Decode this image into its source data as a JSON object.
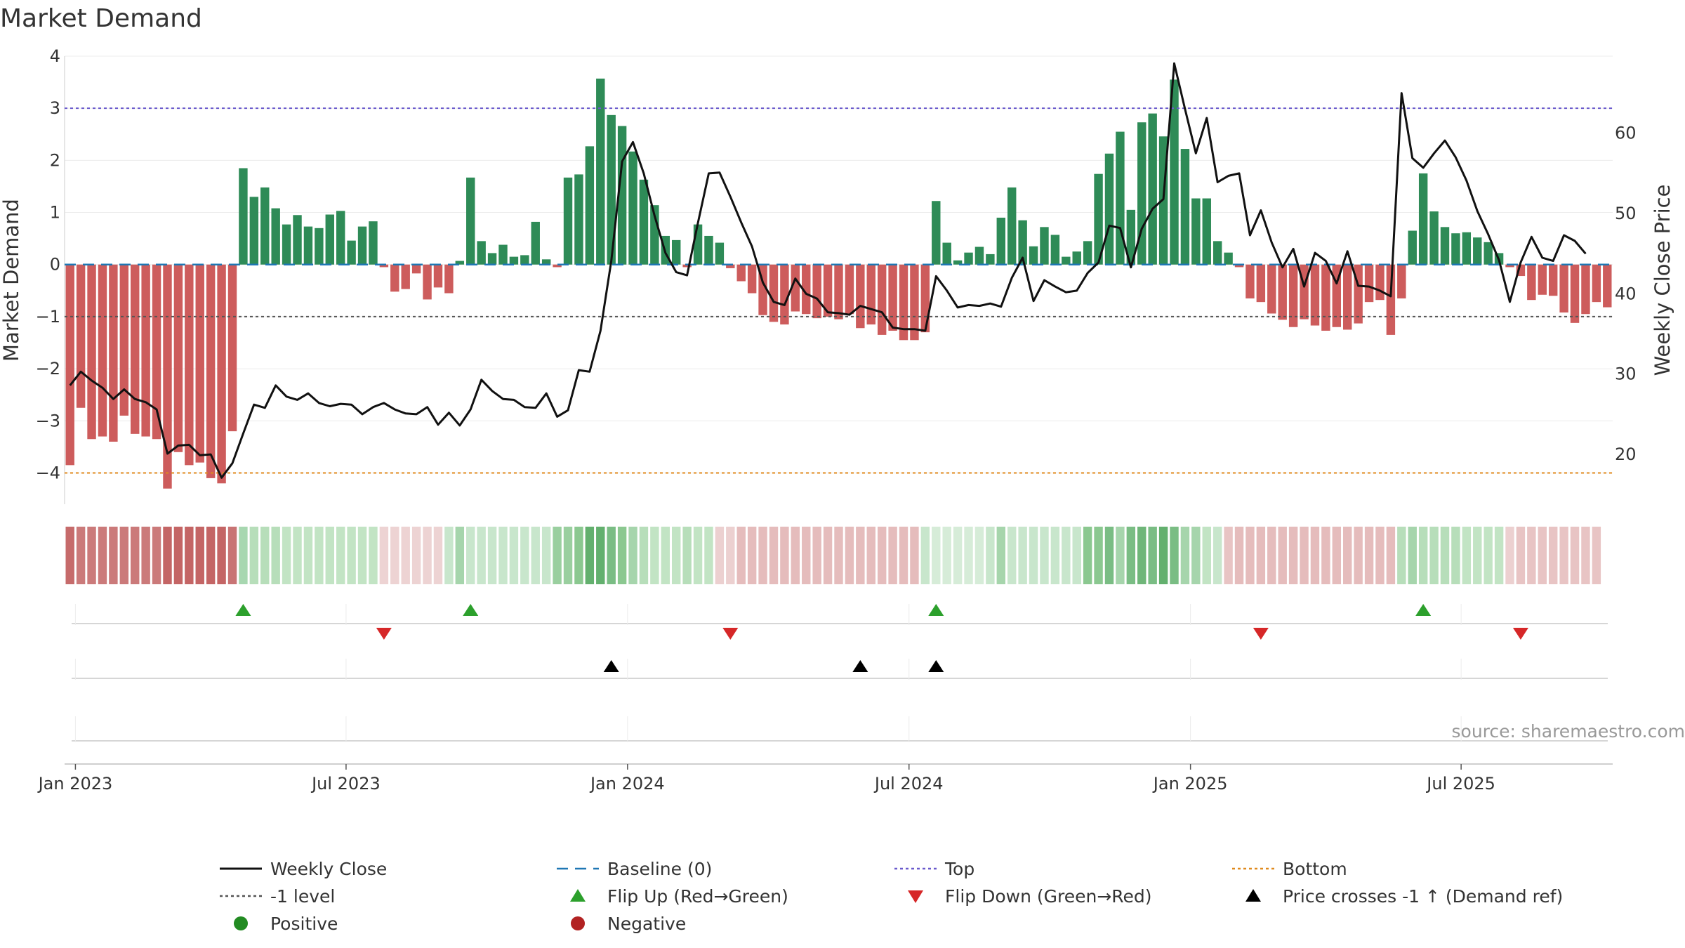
{
  "chart_data": {
    "type": "bar",
    "title": "Market Demand",
    "ylabel": "Market Demand",
    "y2label": "Weekly Close Price",
    "ylim": [
      -4.6,
      4.0
    ],
    "y2lim": [
      13.7,
      69.5
    ],
    "yticks": [
      -4,
      -3,
      -2,
      -1,
      0,
      1,
      2,
      3,
      4
    ],
    "y2ticks": [
      20,
      30,
      40,
      50,
      60
    ],
    "reference_lines": {
      "top": 3,
      "bottom": -4,
      "level": -1,
      "baseline": 0
    },
    "x_start": "2023-01-02",
    "x_ticks": [
      {
        "label": "Jan 2023",
        "week": 1
      },
      {
        "label": "Jul 2023",
        "week": 26
      },
      {
        "label": "Jan 2024",
        "week": 52
      },
      {
        "label": "Jul 2024",
        "week": 78
      },
      {
        "label": "Jan 2025",
        "week": 104
      },
      {
        "label": "Jul 2025",
        "week": 129
      }
    ],
    "series": [
      {
        "name": "Market Demand",
        "values": [
          -3.85,
          -2.75,
          -3.35,
          -3.3,
          -3.4,
          -2.9,
          -3.25,
          -3.3,
          -3.35,
          -4.3,
          -3.6,
          -3.85,
          -3.8,
          -4.1,
          -4.2,
          -3.2,
          1.85,
          1.3,
          1.48,
          1.08,
          0.77,
          0.95,
          0.73,
          0.7,
          0.96,
          1.03,
          0.46,
          0.73,
          0.83,
          -0.05,
          -0.52,
          -0.47,
          -0.17,
          -0.67,
          -0.44,
          -0.55,
          0.07,
          1.67,
          0.45,
          0.22,
          0.38,
          0.15,
          0.18,
          0.82,
          0.1,
          -0.05,
          1.67,
          1.73,
          2.27,
          3.57,
          2.87,
          2.66,
          2.17,
          1.63,
          1.14,
          0.55,
          0.47,
          -0.05,
          0.77,
          0.55,
          0.42,
          -0.07,
          -0.32,
          -0.55,
          -0.97,
          -1.1,
          -1.15,
          -0.9,
          -0.95,
          -1.03,
          -1.0,
          -1.05,
          -0.95,
          -1.22,
          -1.15,
          -1.35,
          -1.27,
          -1.45,
          -1.45,
          -1.3,
          1.22,
          0.42,
          0.08,
          0.23,
          0.34,
          0.2,
          0.9,
          1.48,
          0.85,
          0.35,
          0.72,
          0.57,
          0.15,
          0.25,
          0.45,
          1.74,
          2.13,
          2.55,
          1.05,
          2.73,
          2.9,
          2.46,
          3.55,
          2.22,
          1.27,
          1.27,
          0.45,
          0.23,
          -0.05,
          -0.65,
          -0.72,
          -0.94,
          -1.06,
          -1.2,
          -1.05,
          -1.17,
          -1.27,
          -1.2,
          -1.25,
          -1.13,
          -0.72,
          -0.68,
          -1.35,
          -0.65,
          0.65,
          1.75,
          1.02,
          0.72,
          0.6,
          0.62,
          0.52,
          0.43,
          0.22,
          -0.05,
          -0.22,
          -0.68,
          -0.58,
          -0.6,
          -0.92,
          -1.12,
          -0.95,
          -0.72,
          -0.82
        ]
      },
      {
        "name": "Weekly Close",
        "values": [
          28.5,
          30.2,
          29.1,
          28.2,
          26.8,
          28.0,
          26.8,
          26.4,
          25.5,
          20.0,
          21.0,
          21.1,
          19.8,
          19.9,
          17.0,
          18.8,
          22.5,
          26.1,
          25.7,
          28.5,
          27.1,
          26.7,
          27.5,
          26.3,
          25.9,
          26.2,
          26.1,
          24.9,
          25.8,
          26.3,
          25.5,
          25.0,
          24.9,
          25.8,
          23.6,
          25.1,
          23.5,
          25.5,
          29.2,
          27.8,
          26.8,
          26.7,
          25.8,
          25.7,
          27.5,
          24.6,
          25.4,
          30.4,
          30.2,
          35.3,
          44.0,
          56.4,
          58.8,
          54.9,
          49.6,
          45.0,
          42.6,
          42.2,
          48.7,
          54.9,
          55.0,
          52.0,
          48.8,
          45.8,
          41.3,
          38.9,
          38.5,
          41.8,
          39.9,
          39.3,
          37.6,
          37.5,
          37.3,
          38.4,
          38.0,
          37.6,
          35.7,
          35.5,
          35.5,
          35.3,
          42.1,
          40.3,
          38.2,
          38.5,
          38.4,
          38.7,
          38.3,
          41.9,
          44.4,
          39.0,
          41.6,
          40.8,
          40.1,
          40.3,
          42.5,
          43.8,
          48.4,
          48.1,
          43.2,
          48.0,
          50.5,
          51.7,
          68.6,
          62.9,
          57.4,
          61.8,
          53.8,
          54.6,
          54.9,
          47.2,
          50.3,
          46.3,
          43.2,
          45.5,
          40.8,
          45.0,
          44.0,
          41.2,
          45.2,
          40.9,
          40.8,
          40.3,
          39.6,
          64.9,
          56.8,
          55.6,
          57.4,
          59.0,
          56.9,
          54.0,
          50.2,
          47.3,
          44.1,
          38.9,
          43.8,
          47.0,
          44.4,
          44.0,
          47.2,
          46.5,
          44.9
        ]
      }
    ],
    "state_strip": {
      "colors": [
        "#c66b6b",
        "#cb7a7a",
        "#cb7a7a",
        "#cb7a7a",
        "#cb7a7a",
        "#cb7a7a",
        "#cb7a7a",
        "#cb7a7a",
        "#cb7a7a",
        "#c46565",
        "#c46565",
        "#c46565",
        "#c46565",
        "#c46565",
        "#c46565",
        "#c87474",
        "#a7d7b0",
        "#b7deba",
        "#b7deba",
        "#b7deba",
        "#c2e4c4",
        "#c2e4c4",
        "#c2e4c4",
        "#c2e4c4",
        "#c2e4c4",
        "#c2e4c4",
        "#c2e4c4",
        "#c2e4c4",
        "#c2e4c4",
        "#edd3d3",
        "#edd3d3",
        "#edd3d3",
        "#edd3d3",
        "#edd3d3",
        "#edd3d3",
        "#c8e6cc",
        "#a6d5ac",
        "#c8e6cc",
        "#c8e6cc",
        "#c8e6cc",
        "#c8e6cc",
        "#c8e6cc",
        "#c8e6cc",
        "#c8e6cc",
        "#c8e6cc",
        "#9acf9f",
        "#9acf9f",
        "#8bc890",
        "#63b06e",
        "#63b06e",
        "#7abd84",
        "#8bc890",
        "#a6d5ac",
        "#b7deba",
        "#c2e4c4",
        "#c2e4c4",
        "#c2e4c4",
        "#b7deba",
        "#c2e4c4",
        "#c2e4c4",
        "#ecd0d0",
        "#ecd0d0",
        "#e5bcbc",
        "#e5bcbc",
        "#e5bcbc",
        "#e5bcbc",
        "#e5bcbc",
        "#e5bcbc",
        "#e5bcbc",
        "#e5bcbc",
        "#e5bcbc",
        "#e5bcbc",
        "#e5bcbc",
        "#e5bcbc",
        "#e5bcbc",
        "#e5bcbc",
        "#e5bcbc",
        "#e5bcbc",
        "#e5bcbc",
        "#c8e6cc",
        "#d6ecd8",
        "#d6ecd8",
        "#d6ecd8",
        "#d6ecd8",
        "#d6ecd8",
        "#c8e6cc",
        "#a6d5ac",
        "#c8e6cc",
        "#c8e6cc",
        "#c8e6cc",
        "#c8e6cc",
        "#c8e6cc",
        "#c8e6cc",
        "#c8e6cc",
        "#8bc890",
        "#8bc890",
        "#7abd84",
        "#a6d5ac",
        "#7abd84",
        "#6fb679",
        "#7abd84",
        "#63b06e",
        "#7abd84",
        "#a6d5ac",
        "#a6d5ac",
        "#c2e4c4",
        "#c8e6cc",
        "#e8c4c4",
        "#e5bcbc",
        "#e5bcbc",
        "#e5bcbc",
        "#e5bcbc",
        "#e5bcbc",
        "#e5bcbc",
        "#e5bcbc",
        "#e5bcbc",
        "#e5bcbc",
        "#e5bcbc",
        "#e5bcbc",
        "#e5bcbc",
        "#e5bcbc",
        "#e5bcbc",
        "#e5bcbc",
        "#b7deba",
        "#a6d5ac",
        "#b7deba",
        "#b7deba",
        "#b7deba",
        "#b7deba",
        "#c2e4c4",
        "#c2e4c4",
        "#c2e4c4",
        "#c2e4c4",
        "#ecd0d0",
        "#e8c4c4",
        "#e8c4c4",
        "#e8c4c4",
        "#e8c4c4",
        "#e8c4c4",
        "#e8c4c4",
        "#e8c4c4",
        "#e8c4c4"
      ]
    },
    "flip_up_weeks": [
      16.5,
      37.5,
      80.5,
      125.5
    ],
    "flip_down_weeks": [
      29.5,
      61.5,
      110.5,
      134.5
    ],
    "cross_weeks": [
      50.5,
      73.5,
      80.5
    ],
    "source": "source: sharemaestro.com",
    "legend": [
      {
        "label": "Weekly Close",
        "kind": "line",
        "color": "#111111"
      },
      {
        "label": "Baseline (0)",
        "kind": "dash",
        "color": "#1f77b4"
      },
      {
        "label": "Top",
        "kind": "dotted",
        "color": "#6a5acd"
      },
      {
        "label": "Bottom",
        "kind": "dotted",
        "color": "#e08a1e"
      },
      {
        "label": "-1 level",
        "kind": "dotted",
        "color": "#555555"
      },
      {
        "label": "Flip Up (Red→Green)",
        "kind": "tri-up",
        "color": "#2ca02c"
      },
      {
        "label": "Flip Down (Green→Red)",
        "kind": "tri-down",
        "color": "#d62728"
      },
      {
        "label": "Price crosses -1 ↑ (Demand ref)",
        "kind": "tri-up",
        "color": "#000000"
      },
      {
        "label": "Positive",
        "kind": "dot",
        "color": "#228b22"
      },
      {
        "label": "Negative",
        "kind": "dot",
        "color": "#b22222"
      }
    ],
    "colors": {
      "positive": "#2e8b57",
      "negative": "#cd5c5c"
    }
  }
}
